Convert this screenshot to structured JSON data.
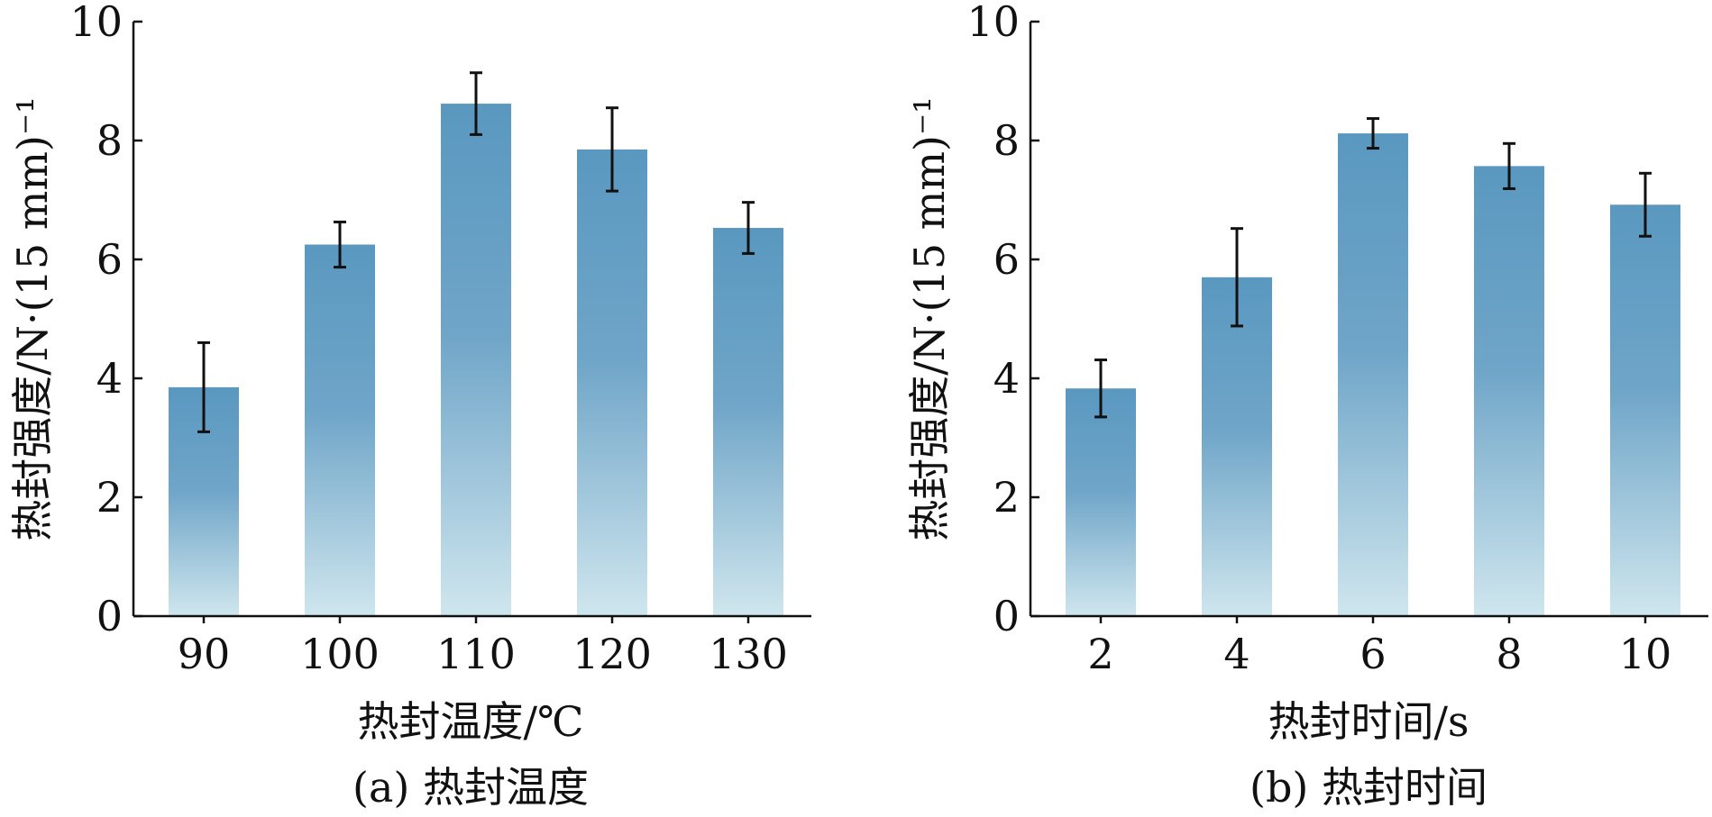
{
  "chart_data": [
    {
      "type": "bar",
      "categories": [
        "90",
        "100",
        "110",
        "120",
        "130"
      ],
      "values": [
        3.85,
        6.25,
        8.62,
        7.85,
        6.53
      ],
      "errors": [
        0.75,
        0.38,
        0.52,
        0.7,
        0.43
      ],
      "ylabel": "热封强度/N·(15 mm)⁻¹",
      "xlabel": "热封温度/℃",
      "caption": "(a) 热封温度",
      "ylim": [
        0,
        10
      ],
      "yticks": [
        "0",
        "2",
        "4",
        "6",
        "8",
        "10"
      ],
      "bar_color_top": "#5a98c0",
      "bar_color_bottom": "#cfe6ee"
    },
    {
      "type": "bar",
      "categories": [
        "2",
        "4",
        "6",
        "8",
        "10"
      ],
      "values": [
        3.83,
        5.7,
        8.12,
        7.57,
        6.92
      ],
      "errors": [
        0.48,
        0.82,
        0.25,
        0.38,
        0.53
      ],
      "ylabel": "热封强度/N·(15 mm)⁻¹",
      "xlabel": "热封时间/s",
      "caption": "(b) 热封时间",
      "ylim": [
        0,
        10
      ],
      "yticks": [
        "0",
        "2",
        "4",
        "6",
        "8",
        "10"
      ],
      "bar_color_top": "#5a98c0",
      "bar_color_bottom": "#cfe6ee"
    }
  ]
}
